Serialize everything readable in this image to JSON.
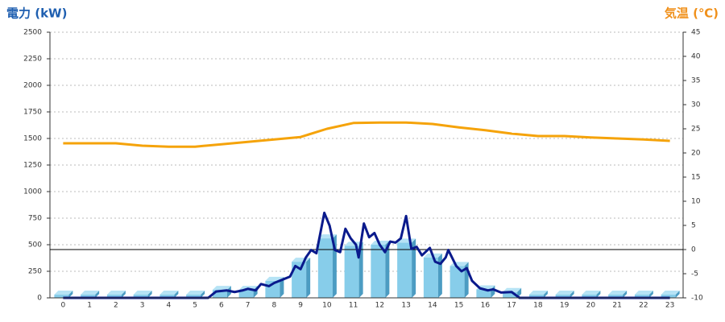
{
  "chart_data": {
    "type": "combo",
    "title": "電力 (kW)",
    "y2_title": "気温 (℃)",
    "title_color": "#1f5fb0",
    "y2_title_color": "#f0901a",
    "categories": [
      "0",
      "1",
      "2",
      "3",
      "4",
      "5",
      "6",
      "7",
      "8",
      "9",
      "10",
      "11",
      "12",
      "13",
      "14",
      "15",
      "16",
      "17",
      "18",
      "19",
      "20",
      "21",
      "22",
      "23"
    ],
    "ylim": [
      0,
      2500
    ],
    "yticks": [
      0,
      250,
      500,
      750,
      1000,
      1250,
      1500,
      1750,
      2000,
      2250,
      2500
    ],
    "y2lim": [
      -10,
      45
    ],
    "y2ticks": [
      -10,
      -5,
      0,
      5,
      10,
      15,
      20,
      25,
      30,
      35,
      40,
      45
    ],
    "grid": true,
    "y2_reference_line": true,
    "series": [
      {
        "type": "bar",
        "color": "#87cdea",
        "values": [
          30,
          30,
          30,
          30,
          30,
          30,
          75,
          75,
          160,
          340,
          560,
          490,
          500,
          520,
          380,
          300,
          80,
          55,
          30,
          30,
          30,
          30,
          30,
          30
        ]
      },
      {
        "type": "line",
        "color": "#0a1a8c",
        "x": [
          0,
          5.5,
          5.8,
          6.2,
          6.5,
          6.8,
          7.0,
          7.3,
          7.5,
          7.8,
          8.0,
          8.3,
          8.6,
          8.8,
          9.0,
          9.2,
          9.4,
          9.6,
          9.9,
          10.1,
          10.3,
          10.5,
          10.7,
          10.9,
          11.1,
          11.2,
          11.4,
          11.6,
          11.8,
          12.0,
          12.2,
          12.4,
          12.6,
          12.8,
          13.0,
          13.2,
          13.4,
          13.6,
          13.9,
          14.1,
          14.3,
          14.5,
          14.6,
          14.9,
          15.1,
          15.3,
          15.5,
          15.8,
          16.1,
          16.3,
          16.6,
          17.0,
          17.3,
          23
        ],
        "values": [
          0,
          0,
          60,
          70,
          55,
          70,
          85,
          70,
          130,
          110,
          140,
          170,
          200,
          300,
          270,
          380,
          450,
          420,
          800,
          680,
          450,
          430,
          650,
          560,
          500,
          380,
          700,
          570,
          610,
          500,
          430,
          530,
          520,
          560,
          770,
          460,
          480,
          400,
          470,
          340,
          320,
          380,
          450,
          300,
          250,
          280,
          160,
          90,
          70,
          80,
          50,
          55,
          0,
          0
        ]
      },
      {
        "type": "line",
        "axis": "y2",
        "color": "#f5a30a",
        "values": [
          22,
          22,
          22,
          21.5,
          21.3,
          21.3,
          21.8,
          22.3,
          22.8,
          23.3,
          25,
          26.2,
          26.3,
          26.3,
          26,
          25.3,
          24.7,
          24,
          23.5,
          23.5,
          23.2,
          23,
          22.8,
          22.5
        ]
      }
    ]
  }
}
